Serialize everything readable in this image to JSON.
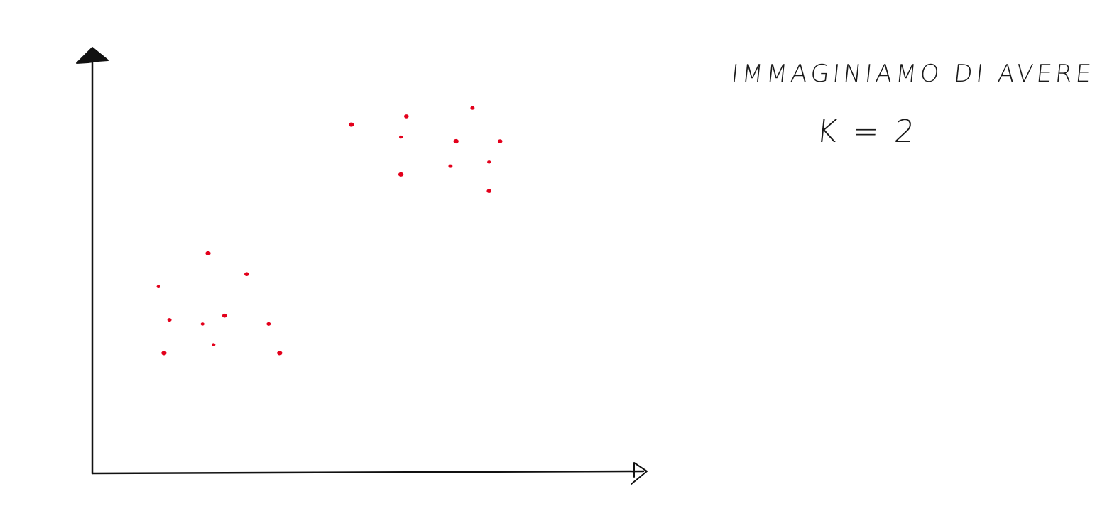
{
  "annotations": {
    "line1": "IMMAGINIAMO DI AVERE",
    "line2": "K = 2"
  },
  "colors": {
    "points": "#e3001b",
    "axes": "#111111"
  },
  "chart_data": {
    "type": "scatter",
    "title": "",
    "xlabel": "",
    "ylabel": "",
    "xlim": [
      0,
      100
    ],
    "ylim": [
      0,
      100
    ],
    "grid": false,
    "legend": "none",
    "series": [
      {
        "points": [
          [
            12,
            45
          ],
          [
            21,
            53
          ],
          [
            28,
            48
          ],
          [
            14,
            37
          ],
          [
            20,
            36
          ],
          [
            13,
            29
          ],
          [
            24,
            38
          ],
          [
            32,
            36
          ],
          [
            22,
            31
          ],
          [
            34,
            29
          ]
        ]
      },
      {
        "points": [
          [
            47,
            84
          ],
          [
            57,
            86
          ],
          [
            69,
            88
          ],
          [
            56,
            81
          ],
          [
            66,
            80
          ],
          [
            74,
            80
          ],
          [
            65,
            74
          ],
          [
            72,
            75
          ],
          [
            56,
            72
          ],
          [
            72,
            68
          ]
        ]
      }
    ]
  }
}
